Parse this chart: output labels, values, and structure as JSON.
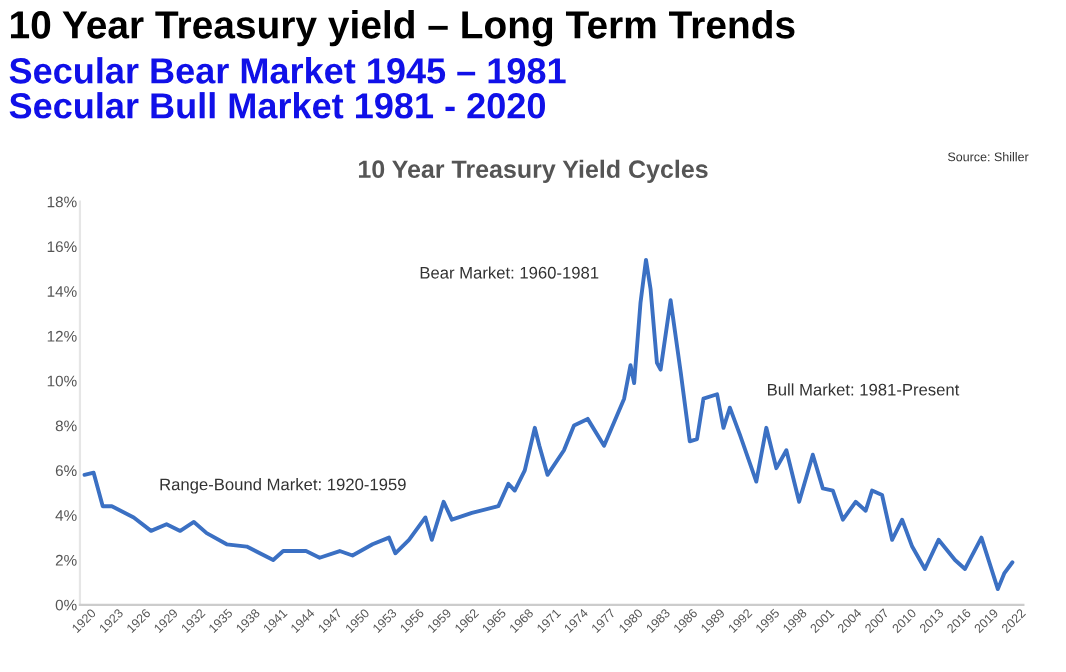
{
  "chart_data": {
    "type": "line",
    "title": "10 Year Treasury yield – Long Term Trends",
    "subtitle": "Secular Bear Market 1945 – 1981\nSecular Bull Market 1981 - 2020",
    "annotations": [
      "10 Year Treasury Yield Cycles",
      "Source: Shiller",
      "Range-Bound Market: 1920-1959",
      "Bear Market: 1960-1981",
      "Bull Market: 1981-Present"
    ],
    "series": [
      {
        "color": "#3b70c3",
        "x": [
          1920,
          1921,
          1922,
          1923,
          1925.4,
          1927.3,
          1929,
          1930.5,
          1932,
          1933.4,
          1935.6,
          1937.8,
          1940.7,
          1941.8,
          1944.3,
          1945.8,
          1948,
          1949.4,
          1951.6,
          1953.4,
          1954.1,
          1955.6,
          1957.4,
          1958.1,
          1959.4,
          1960.3,
          1962.5,
          1965.4,
          1966.5,
          1967.2,
          1968.3,
          1969.4,
          1969.9,
          1970.8,
          1972.6,
          1973.7,
          1975.2,
          1977,
          1979.2,
          1979.9,
          1980.3,
          1981,
          1981.6,
          1982.1,
          1982.8,
          1983.2,
          1984.3,
          1985.4,
          1986.4,
          1987.2,
          1987.9,
          1989.4,
          1990.1,
          1990.8,
          1991.9,
          1993.7,
          1994.8,
          1995.9,
          1997,
          1998.4,
          1999.9,
          2001,
          2002.1,
          2003.2,
          2004.6,
          2005.7,
          2006.4,
          2007.5,
          2008.6,
          2009.7,
          2010.8,
          2012.2,
          2013.7,
          2015.5,
          2016.6,
          2018.4,
          2020.2,
          2020.9,
          2021.8
        ],
        "values": [
          5.8,
          5.9,
          4.4,
          4.4,
          3.9,
          3.3,
          3.6,
          3.3,
          3.7,
          3.2,
          2.7,
          2.6,
          2.0,
          2.4,
          2.4,
          2.1,
          2.4,
          2.2,
          2.7,
          3.0,
          2.3,
          2.9,
          3.9,
          2.9,
          4.6,
          3.8,
          4.1,
          4.4,
          5.4,
          5.1,
          6.0,
          7.9,
          7.1,
          5.8,
          6.9,
          8.0,
          8.3,
          7.1,
          9.2,
          10.7,
          9.9,
          13.5,
          15.4,
          14.1,
          10.8,
          10.5,
          13.6,
          10.4,
          7.3,
          7.4,
          9.2,
          9.4,
          7.9,
          8.8,
          7.6,
          5.5,
          7.9,
          6.1,
          6.9,
          4.6,
          6.7,
          5.2,
          5.1,
          3.8,
          4.6,
          4.2,
          5.1,
          4.9,
          2.9,
          3.8,
          2.6,
          1.6,
          2.9,
          2.0,
          1.6,
          3.0,
          0.7,
          1.4,
          1.9
        ]
      }
    ],
    "xlim": [
      1919.5,
      2023
    ],
    "xticks": [
      1920,
      1923,
      1926,
      1929,
      1932,
      1935,
      1938,
      1941,
      1944,
      1947,
      1950,
      1953,
      1956,
      1959,
      1962,
      1965,
      1968,
      1971,
      1974,
      1977,
      1980,
      1983,
      1986,
      1989,
      1992,
      1995,
      1998,
      2001,
      2004,
      2007,
      2010,
      2013,
      2016,
      2019,
      2022
    ],
    "ylim": [
      0,
      18
    ],
    "yticks": [
      {
        "value": 0,
        "label": "0%"
      },
      {
        "value": 2,
        "label": "2%"
      },
      {
        "value": 4,
        "label": "4%"
      },
      {
        "value": 6,
        "label": "6%"
      },
      {
        "value": 8,
        "label": "8%"
      },
      {
        "value": 10,
        "label": "10%"
      },
      {
        "value": 12,
        "label": "12%"
      },
      {
        "value": 14,
        "label": "14%"
      },
      {
        "value": 16,
        "label": "16%"
      },
      {
        "value": 18,
        "label": "18%"
      }
    ],
    "grid": false,
    "legend": false
  }
}
